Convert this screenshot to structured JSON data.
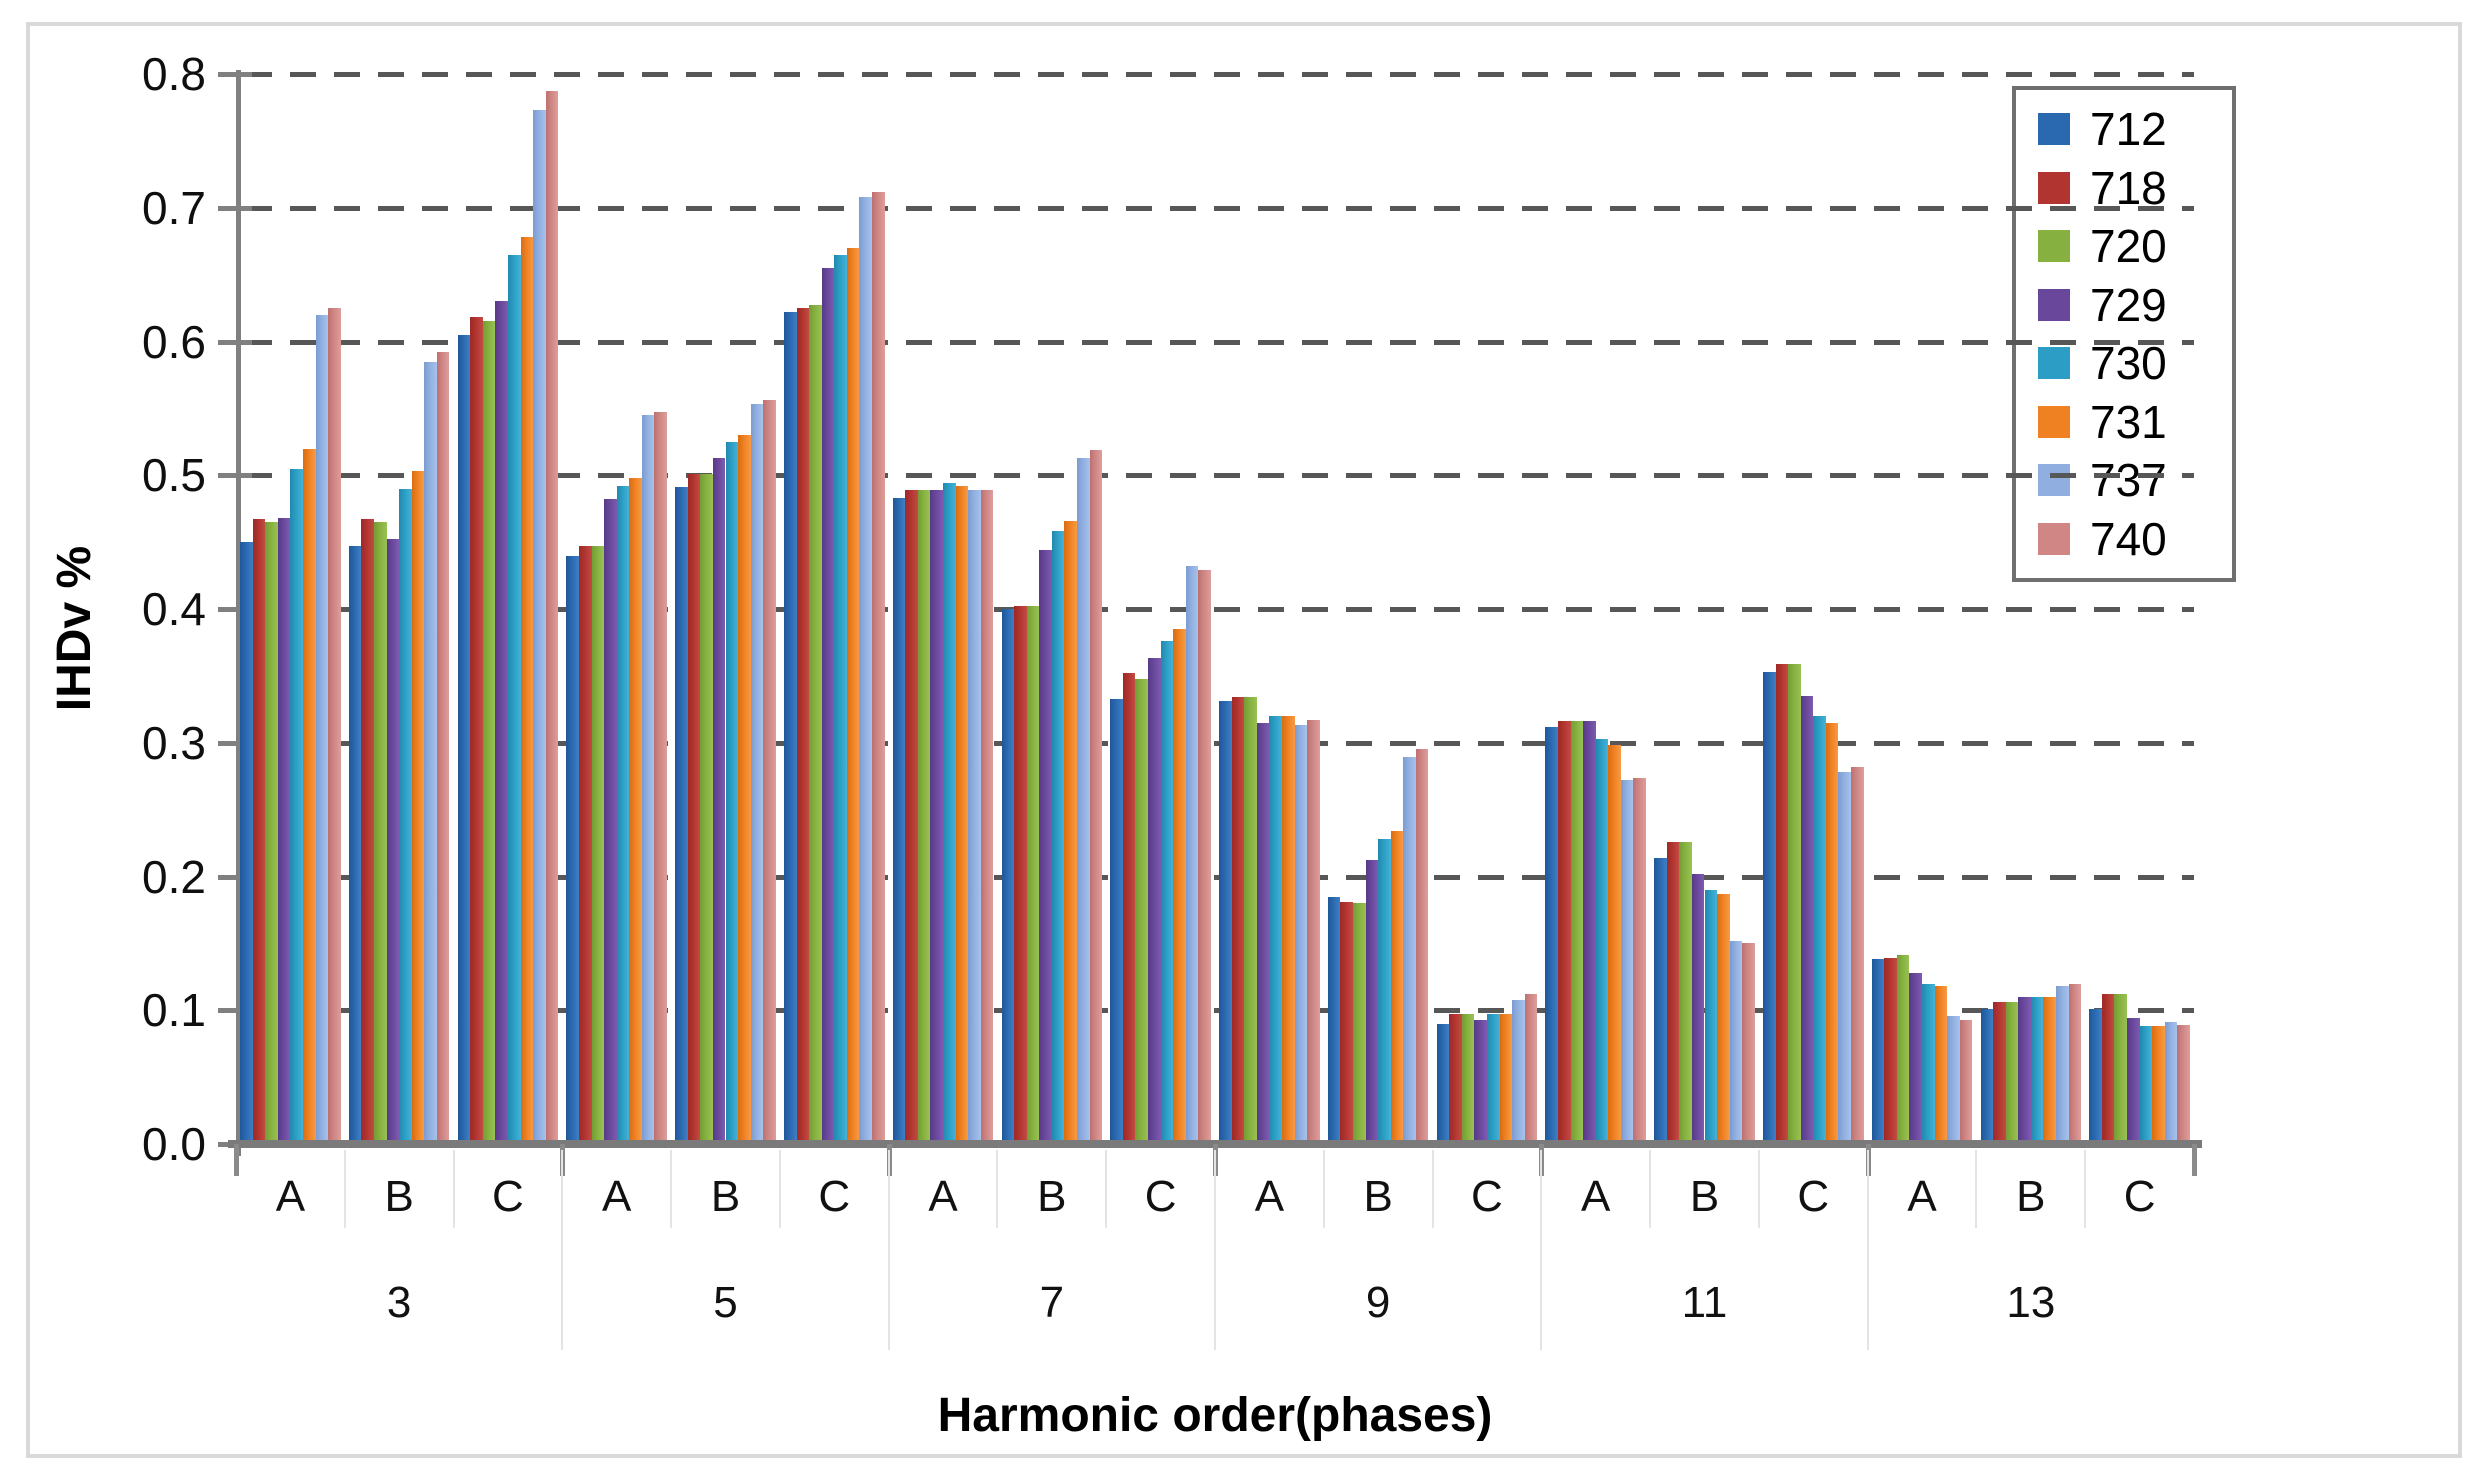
{
  "chart_data": {
    "type": "bar",
    "title": "",
    "xlabel": "Harmonic order(phases)",
    "ylabel": "IHDv %",
    "ylim": [
      0.0,
      0.8
    ],
    "y_tick_step": 0.1,
    "y_tick_labels": [
      "0.0",
      "0.1",
      "0.2",
      "0.3",
      "0.4",
      "0.5",
      "0.6",
      "0.7",
      "0.8"
    ],
    "grid": "dashed horizontal",
    "legend_position": "top-right inside",
    "groups": [
      "3",
      "5",
      "7",
      "9",
      "11",
      "13"
    ],
    "phases": [
      "A",
      "B",
      "C"
    ],
    "series": [
      {
        "name": "712",
        "color": "#2a69af",
        "dark": "#1f579a",
        "light": "#3f7fc6"
      },
      {
        "name": "718",
        "color": "#b23430",
        "dark": "#9c2a26",
        "light": "#c24b44"
      },
      {
        "name": "720",
        "color": "#86b040",
        "dark": "#749c34",
        "light": "#98c253"
      },
      {
        "name": "729",
        "color": "#69489c",
        "dark": "#573a86",
        "light": "#7d5bb0"
      },
      {
        "name": "730",
        "color": "#2c9ec5",
        "dark": "#2188ae",
        "light": "#45b2d6"
      },
      {
        "name": "731",
        "color": "#ef8122",
        "dark": "#d86c12",
        "light": "#f89a44"
      },
      {
        "name": "737",
        "color": "#90afe0",
        "dark": "#7c9bd0",
        "light": "#a6c2ec"
      },
      {
        "name": "740",
        "color": "#cf8684",
        "dark": "#bc716f",
        "light": "#dd9e9c"
      }
    ],
    "values": [
      [
        [
          0.45,
          0.467,
          0.465,
          0.468,
          0.505,
          0.52,
          0.62,
          0.625
        ],
        [
          0.447,
          0.467,
          0.465,
          0.452,
          0.49,
          0.503,
          0.585,
          0.592
        ],
        [
          0.605,
          0.618,
          0.615,
          0.63,
          0.665,
          0.678,
          0.773,
          0.787
        ]
      ],
      [
        [
          0.44,
          0.447,
          0.447,
          0.482,
          0.492,
          0.498,
          0.545,
          0.547
        ],
        [
          0.491,
          0.501,
          0.501,
          0.513,
          0.525,
          0.53,
          0.553,
          0.556
        ],
        [
          0.622,
          0.625,
          0.627,
          0.655,
          0.665,
          0.67,
          0.708,
          0.712
        ]
      ],
      [
        [
          0.483,
          0.489,
          0.489,
          0.489,
          0.494,
          0.492,
          0.489,
          0.489
        ],
        [
          0.4,
          0.402,
          0.402,
          0.444,
          0.458,
          0.466,
          0.513,
          0.519
        ],
        [
          0.333,
          0.352,
          0.348,
          0.363,
          0.376,
          0.385,
          0.432,
          0.429
        ]
      ],
      [
        [
          0.331,
          0.334,
          0.334,
          0.315,
          0.32,
          0.32,
          0.313,
          0.317
        ],
        [
          0.185,
          0.181,
          0.18,
          0.212,
          0.228,
          0.234,
          0.289,
          0.295
        ],
        [
          0.09,
          0.097,
          0.097,
          0.093,
          0.097,
          0.097,
          0.108,
          0.112
        ]
      ],
      [
        [
          0.312,
          0.316,
          0.316,
          0.316,
          0.303,
          0.298,
          0.272,
          0.274
        ],
        [
          0.214,
          0.226,
          0.226,
          0.202,
          0.19,
          0.187,
          0.152,
          0.15
        ],
        [
          0.353,
          0.359,
          0.359,
          0.335,
          0.32,
          0.315,
          0.278,
          0.282
        ]
      ],
      [
        [
          0.138,
          0.139,
          0.141,
          0.128,
          0.12,
          0.118,
          0.096,
          0.093
        ],
        [
          0.101,
          0.106,
          0.106,
          0.11,
          0.11,
          0.11,
          0.118,
          0.12
        ],
        [
          0.101,
          0.112,
          0.112,
          0.094,
          0.088,
          0.088,
          0.091,
          0.089
        ]
      ]
    ]
  }
}
